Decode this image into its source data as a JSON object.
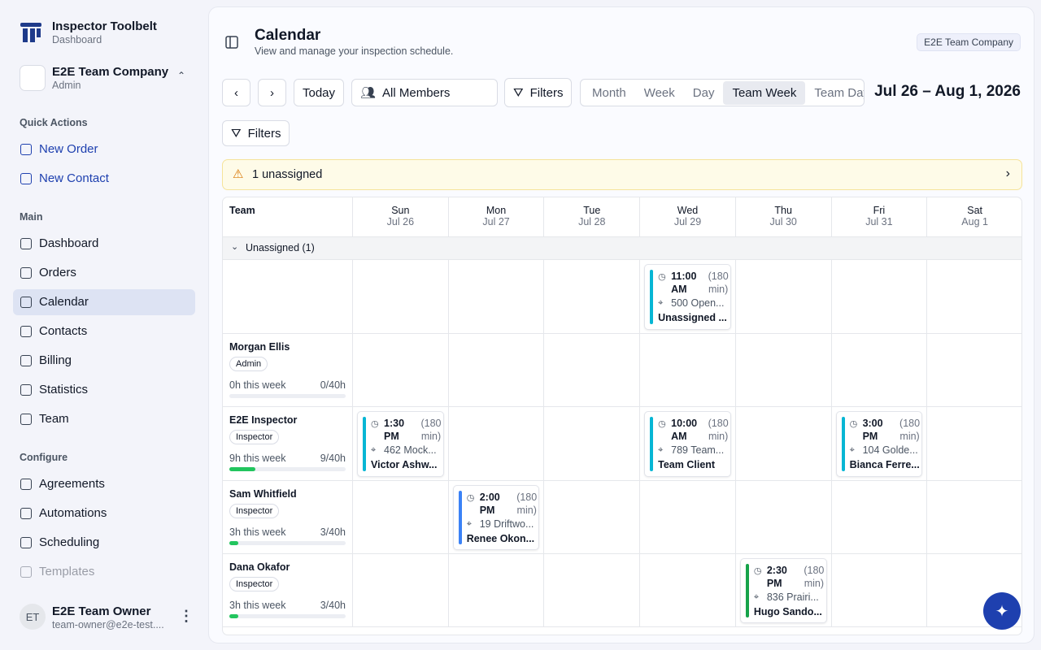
{
  "sidebar": {
    "app_name": "Inspector Toolbelt",
    "app_sub": "Dashboard",
    "org_name": "E2E Team Company",
    "org_role": "Admin",
    "sections": [
      {
        "label": "Quick Actions",
        "items": [
          "New Order",
          "New Contact"
        ]
      },
      {
        "label": "Main",
        "items": [
          "Dashboard",
          "Orders",
          "Calendar",
          "Contacts",
          "Billing",
          "Statistics",
          "Team"
        ]
      },
      {
        "label": "Configure",
        "items": [
          "Agreements",
          "Automations",
          "Scheduling",
          "Templates"
        ]
      }
    ],
    "active": "Calendar",
    "user_initials": "ET",
    "user_name": "E2E Team Owner",
    "user_email": "team-owner@e2e-test...."
  },
  "header": {
    "title": "Calendar",
    "subtitle": "View and manage your inspection schedule.",
    "org_badge": "E2E Team Company"
  },
  "toolbar": {
    "today": "Today",
    "members": "All Members",
    "filters": "Filters",
    "views": [
      "Month",
      "Week",
      "Day",
      "Team Week",
      "Team Day"
    ],
    "active_view": "Team Week",
    "date_range": "Jul 26 – Aug 1, 2026",
    "filters2": "Filters"
  },
  "alert": "1 unassigned",
  "grid": {
    "team_header": "Team",
    "days": [
      {
        "dow": "Sun",
        "date": "Jul 26"
      },
      {
        "dow": "Mon",
        "date": "Jul 27"
      },
      {
        "dow": "Tue",
        "date": "Jul 28"
      },
      {
        "dow": "Wed",
        "date": "Jul 29"
      },
      {
        "dow": "Thu",
        "date": "Jul 30"
      },
      {
        "dow": "Fri",
        "date": "Jul 31"
      },
      {
        "dow": "Sat",
        "date": "Aug 1"
      }
    ],
    "group_label": "Unassigned (1)",
    "rows": [
      {
        "name": null,
        "events": [
          {
            "day": 3,
            "time": "11:00 AM",
            "duration": "(180 min)",
            "address": "500 Open...",
            "client": "Unassigned ...",
            "color": "#06b6d4"
          }
        ]
      },
      {
        "name": "Morgan Ellis",
        "role": "Admin",
        "hours": "0h this week",
        "ratio": "0/40h",
        "booked": 0,
        "capacity": 40,
        "events": []
      },
      {
        "name": "E2E Inspector",
        "role": "Inspector",
        "hours": "9h this week",
        "ratio": "9/40h",
        "booked": 9,
        "capacity": 40,
        "events": [
          {
            "day": 0,
            "time": "1:30 PM",
            "duration": "(180 min)",
            "address": "462 Mock...",
            "client": "Victor Ashw...",
            "color": "#06b6d4"
          },
          {
            "day": 3,
            "time": "10:00 AM",
            "duration": "(180 min)",
            "address": "789 Team...",
            "client": "Team Client",
            "color": "#06b6d4"
          },
          {
            "day": 5,
            "time": "3:00 PM",
            "duration": "(180 min)",
            "address": "104 Golde...",
            "client": "Bianca Ferre...",
            "color": "#06b6d4"
          }
        ]
      },
      {
        "name": "Sam Whitfield",
        "role": "Inspector",
        "hours": "3h this week",
        "ratio": "3/40h",
        "booked": 3,
        "capacity": 40,
        "events": [
          {
            "day": 1,
            "time": "2:00 PM",
            "duration": "(180 min)",
            "address": "19 Driftwo...",
            "client": "Renee Okon...",
            "color": "#3b82f6"
          }
        ]
      },
      {
        "name": "Dana Okafor",
        "role": "Inspector",
        "hours": "3h this week",
        "ratio": "3/40h",
        "booked": 3,
        "capacity": 40,
        "events": [
          {
            "day": 4,
            "time": "2:30 PM",
            "duration": "(180 min)",
            "address": "836 Prairi...",
            "client": "Hugo Sando...",
            "color": "#16a34a"
          }
        ]
      }
    ]
  }
}
